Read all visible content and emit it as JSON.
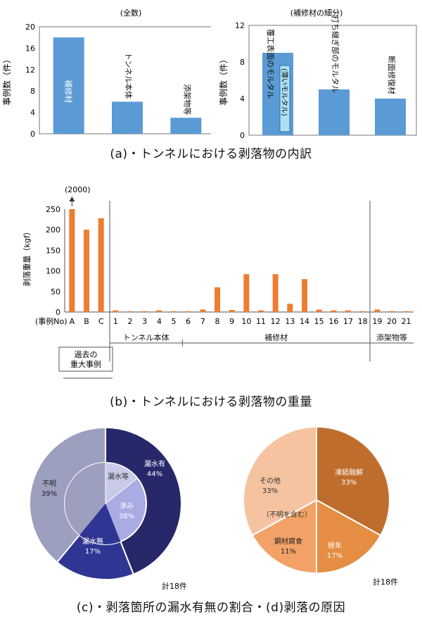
{
  "chart_data": [
    {
      "type": "bar",
      "title": "(全数)",
      "ylabel": "事例数（件）",
      "ylim": [
        0,
        20
      ],
      "yticks": [
        0,
        4,
        8,
        12,
        16,
        20
      ],
      "categories": [
        "補修材",
        "トンネル本体",
        "添架物等"
      ],
      "values": [
        18,
        6,
        3
      ],
      "color": "#5b9bd5"
    },
    {
      "type": "bar",
      "title": "(補修材の細分)",
      "ylabel": "事例数（件）",
      "ylim": [
        0,
        12
      ],
      "yticks": [
        0,
        4,
        8,
        12
      ],
      "categories": [
        "断面修復材",
        "打ち継ぎ部のモルタル",
        "覆工表面のモルタル"
      ],
      "values": [
        4,
        5,
        9
      ],
      "inner_label": "(薄いモルタル)",
      "color": "#5b9bd5"
    },
    {
      "type": "bar",
      "title": "",
      "ylabel": "剥落重量（kgf）",
      "ylim": [
        0,
        250
      ],
      "yticks": [
        0,
        50,
        100,
        150,
        200,
        250
      ],
      "x_axis_label": "(事例No)",
      "categories": [
        "A",
        "B",
        "C",
        "1",
        "2",
        "3",
        "4",
        "5",
        "6",
        "7",
        "8",
        "9",
        "10",
        "11",
        "12",
        "13",
        "14",
        "15",
        "16",
        "17",
        "18",
        "19",
        "20",
        "21"
      ],
      "values": [
        255,
        200,
        228,
        4,
        2,
        2,
        4,
        2,
        2,
        6,
        60,
        5,
        92,
        4,
        92,
        20,
        80,
        6,
        4,
        4,
        2,
        6,
        2,
        2
      ],
      "outlier_note": "(2000)",
      "groups": [
        "トンネル本体",
        "補修材",
        "添架物等"
      ],
      "bracket_label": "過去の重大事例",
      "color": "#ed7d31"
    },
    {
      "type": "pie",
      "slices": [
        {
          "label": "漏水有",
          "percent": "44%"
        },
        {
          "label": "漏水無",
          "percent": "17%"
        },
        {
          "label": "不明",
          "percent": "39%"
        }
      ],
      "inner_slices": [
        {
          "label": "滲み",
          "percent": "38%"
        },
        {
          "label": "漏水等",
          "percent": ""
        }
      ],
      "total_label": "計18件"
    },
    {
      "type": "pie",
      "slices": [
        {
          "label": "凍結融解",
          "percent": "33%"
        },
        {
          "label": "経年",
          "percent": "17%"
        },
        {
          "label": "鋼材腐食",
          "percent": "11%"
        },
        {
          "label": "その他",
          "percent": "33%"
        }
      ],
      "other_note": "（不明を含む）",
      "total_label": "計18件"
    }
  ],
  "captions": {
    "a": "(a)・トンネルにおける剥落物の内訳",
    "b": "(b)・トンネルにおける剥落物の重量",
    "cd": "(c)・剥落箇所の漏水有無の割合・(d)剥落の原因"
  },
  "colors": {
    "blue_bar": "#5b9bd5",
    "orange_bar": "#ed7d31",
    "c_wet": "#27286a",
    "c_dry": "#2f3592",
    "c_unknown": "#9d9fbf",
    "c_inner": "#a9abe3",
    "d_freeze": "#bf6d2d",
    "d_age": "#e58d43",
    "d_steel": "#f2a266",
    "d_other": "#f6c3a1"
  }
}
